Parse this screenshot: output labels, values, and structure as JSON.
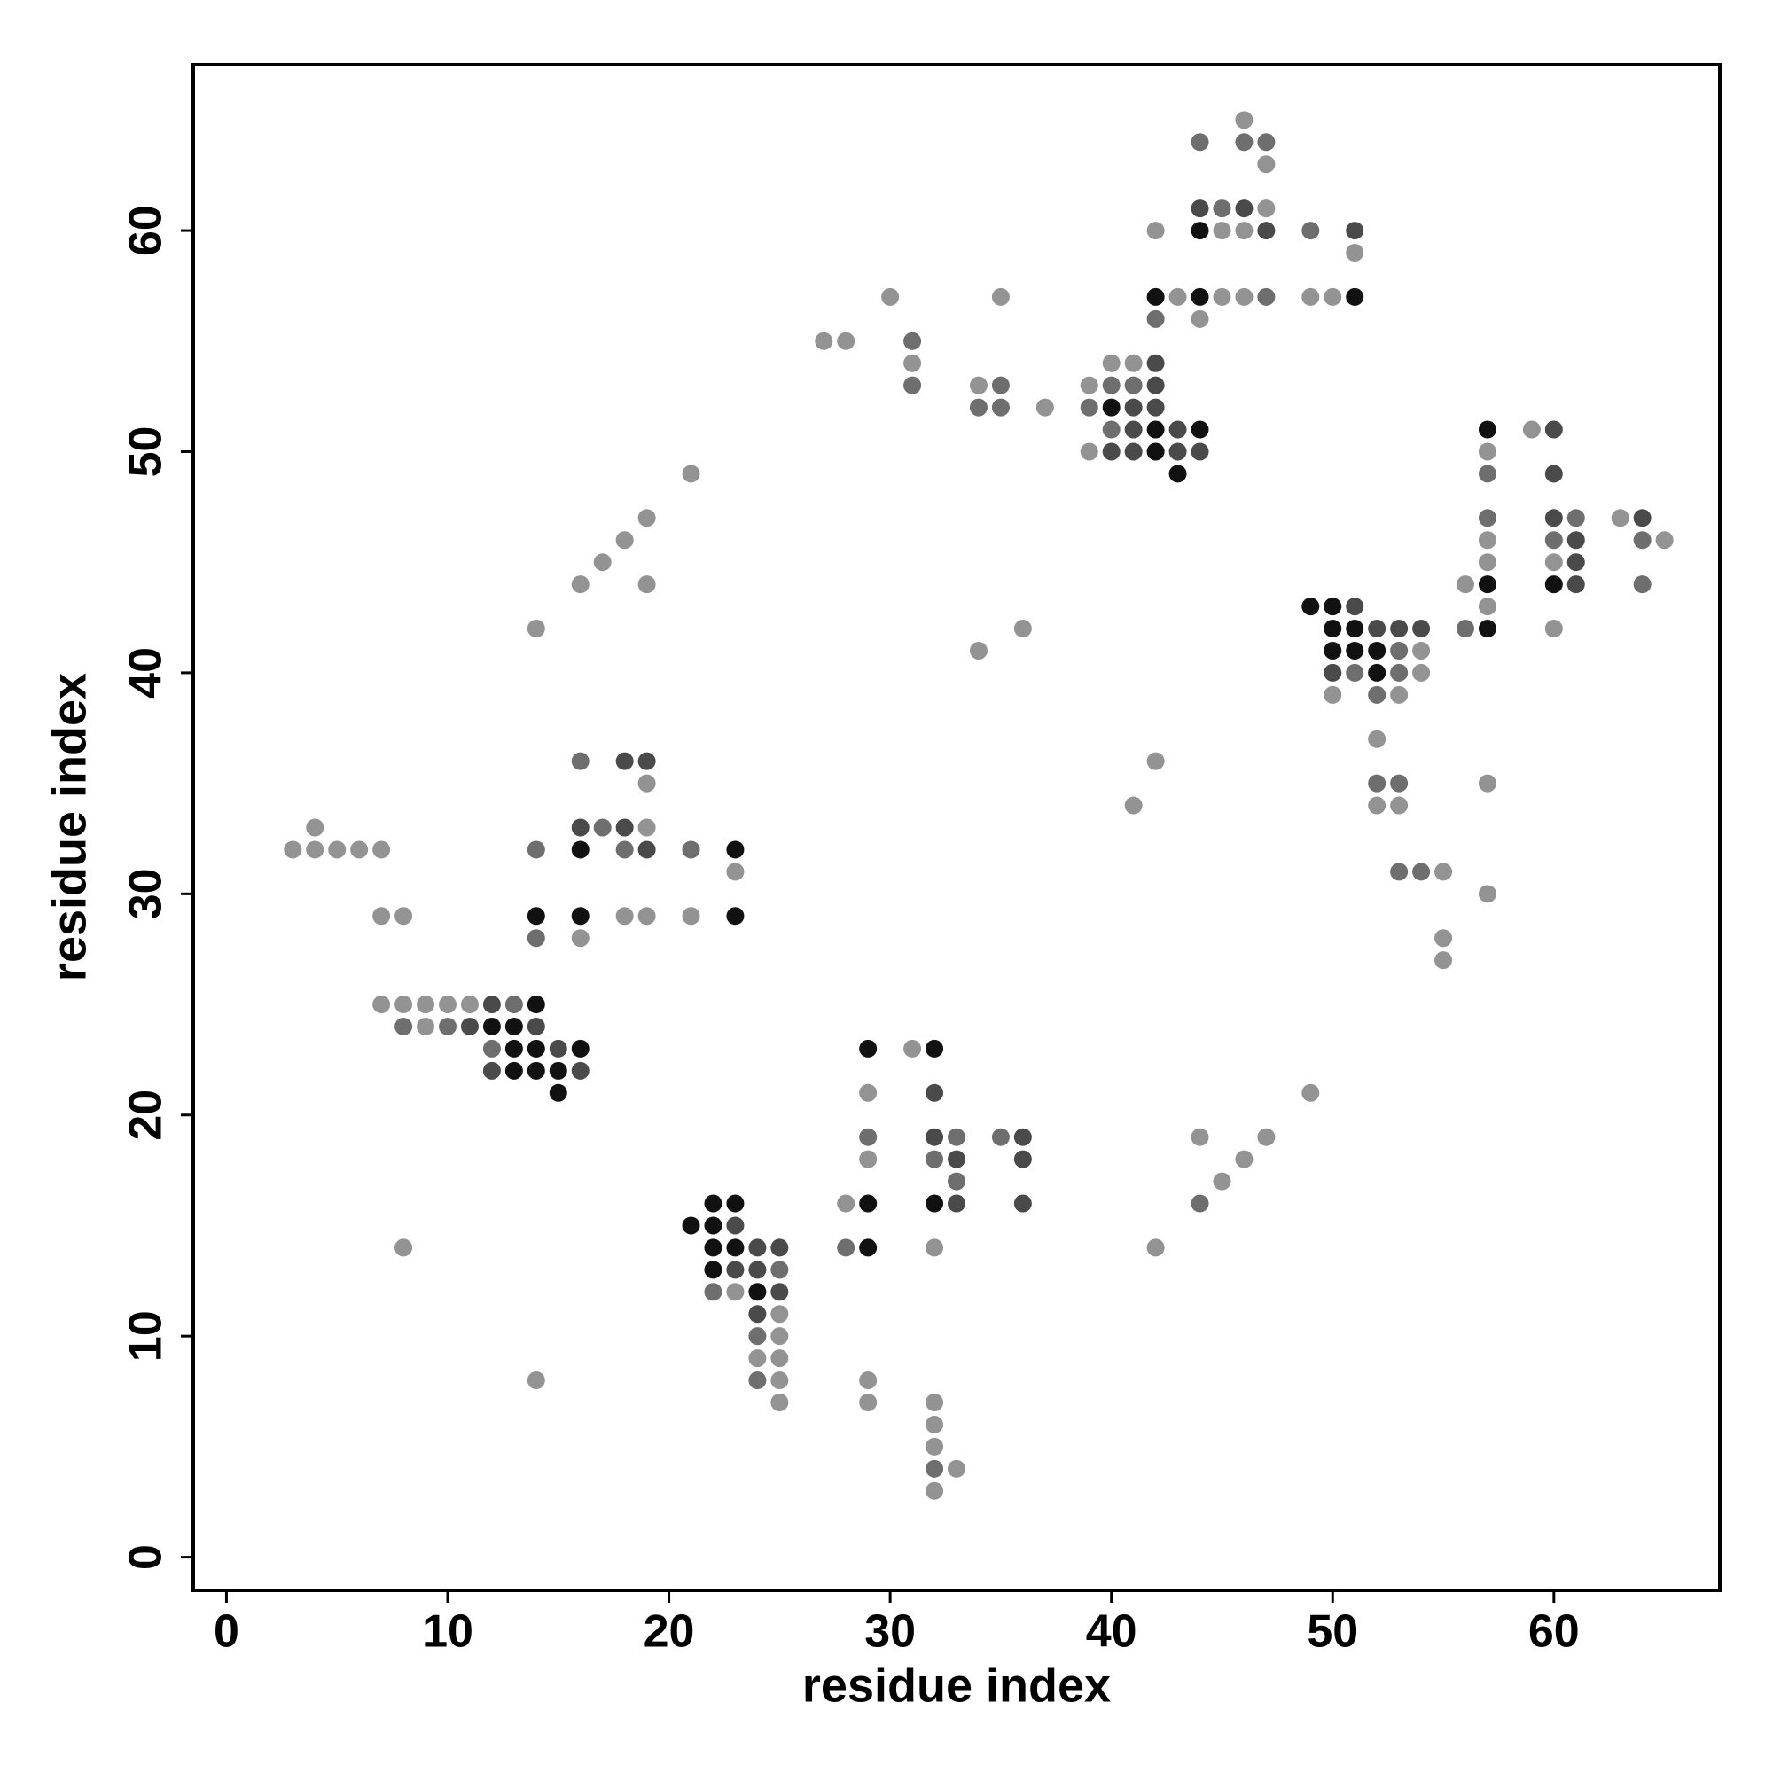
{
  "chart_data": {
    "type": "scatter",
    "xlabel": "residue index",
    "ylabel": "residue index",
    "xlim": [
      -1.5,
      67.5
    ],
    "ylim": [
      -1.5,
      67.5
    ],
    "xticks": [
      0,
      10,
      20,
      30,
      40,
      50,
      60
    ],
    "yticks": [
      0,
      10,
      20,
      30,
      40,
      50,
      60
    ],
    "series": [
      {
        "color": "#939393",
        "x": [
          46,
          47,
          47,
          42,
          45,
          46,
          51,
          30,
          35,
          43,
          45,
          46,
          49,
          50,
          44,
          27,
          28,
          31,
          40,
          41,
          34,
          39,
          37,
          59,
          39,
          57,
          21,
          19,
          63,
          18,
          57,
          65,
          17,
          57,
          60,
          16,
          19,
          56,
          57,
          14,
          36,
          60,
          34,
          54,
          54,
          50,
          53,
          52,
          42,
          19,
          57,
          41,
          52,
          53,
          4,
          19,
          3,
          4,
          5,
          6,
          7,
          23,
          55,
          57,
          7,
          8,
          18,
          19,
          21,
          16,
          55,
          55,
          7,
          8,
          9,
          10,
          11,
          9,
          31,
          29,
          49,
          44,
          47,
          29,
          46,
          45,
          28,
          8,
          32,
          42,
          23,
          25,
          25,
          24,
          25,
          14,
          25,
          29,
          25,
          29,
          32,
          32,
          32,
          33,
          32
        ],
        "y": [
          65,
          63,
          61,
          60,
          60,
          60,
          59,
          57,
          57,
          57,
          57,
          57,
          57,
          57,
          56,
          55,
          55,
          54,
          54,
          54,
          53,
          53,
          52,
          51,
          50,
          50,
          49,
          47,
          47,
          46,
          46,
          46,
          45,
          45,
          45,
          44,
          44,
          44,
          43,
          42,
          42,
          42,
          41,
          41,
          40,
          39,
          39,
          37,
          36,
          35,
          35,
          34,
          34,
          34,
          33,
          33,
          32,
          32,
          32,
          32,
          32,
          31,
          31,
          30,
          29,
          29,
          29,
          29,
          29,
          28,
          28,
          27,
          25,
          25,
          25,
          25,
          25,
          24,
          23,
          21,
          21,
          19,
          19,
          18,
          18,
          17,
          16,
          14,
          14,
          14,
          12,
          11,
          10,
          9,
          9,
          8,
          8,
          8,
          7,
          7,
          7,
          6,
          5,
          4,
          3
        ]
      },
      {
        "color": "#6e6e6e",
        "x": [
          44,
          46,
          47,
          45,
          49,
          47,
          42,
          31,
          31,
          35,
          40,
          41,
          34,
          35,
          39,
          40,
          57,
          57,
          61,
          60,
          64,
          64,
          56,
          53,
          51,
          53,
          52,
          16,
          52,
          53,
          17,
          14,
          18,
          21,
          53,
          54,
          14,
          13,
          8,
          10,
          12,
          29,
          33,
          35,
          32,
          33,
          44,
          28,
          25,
          22,
          24,
          24,
          32
        ],
        "y": [
          64,
          64,
          64,
          61,
          60,
          57,
          56,
          55,
          53,
          53,
          53,
          53,
          52,
          52,
          52,
          51,
          49,
          47,
          47,
          46,
          46,
          44,
          42,
          41,
          40,
          40,
          39,
          36,
          35,
          35,
          33,
          32,
          32,
          32,
          31,
          31,
          28,
          25,
          24,
          24,
          23,
          19,
          19,
          19,
          18,
          17,
          16,
          14,
          13,
          12,
          10,
          8,
          4
        ]
      },
      {
        "color": "#4a4a4a",
        "x": [
          44,
          46,
          47,
          51,
          42,
          42,
          41,
          42,
          41,
          43,
          60,
          40,
          41,
          43,
          44,
          60,
          60,
          64,
          61,
          61,
          61,
          51,
          52,
          53,
          54,
          50,
          18,
          19,
          16,
          18,
          19,
          12,
          11,
          14,
          15,
          12,
          16,
          32,
          32,
          36,
          33,
          36,
          33,
          36,
          23,
          24,
          25,
          23,
          24,
          25,
          24
        ],
        "y": [
          61,
          61,
          60,
          60,
          54,
          53,
          52,
          52,
          51,
          51,
          51,
          50,
          50,
          50,
          50,
          49,
          47,
          47,
          46,
          45,
          44,
          43,
          42,
          42,
          42,
          40,
          36,
          36,
          33,
          33,
          32,
          25,
          24,
          24,
          23,
          22,
          22,
          21,
          19,
          19,
          18,
          18,
          16,
          16,
          15,
          14,
          14,
          13,
          13,
          12,
          11
        ]
      },
      {
        "color": "#111111",
        "x": [
          44,
          42,
          44,
          51,
          40,
          42,
          44,
          57,
          42,
          43,
          57,
          60,
          49,
          50,
          50,
          51,
          57,
          50,
          51,
          52,
          52,
          16,
          23,
          14,
          16,
          23,
          14,
          12,
          13,
          13,
          14,
          16,
          29,
          32,
          13,
          14,
          15,
          15,
          22,
          23,
          29,
          32,
          21,
          22,
          22,
          23,
          29,
          22,
          24
        ],
        "y": [
          60,
          57,
          57,
          57,
          52,
          51,
          51,
          51,
          50,
          49,
          44,
          44,
          43,
          43,
          42,
          42,
          42,
          41,
          41,
          41,
          40,
          32,
          32,
          29,
          29,
          29,
          25,
          24,
          24,
          23,
          23,
          23,
          23,
          23,
          22,
          22,
          22,
          21,
          16,
          16,
          16,
          16,
          15,
          15,
          14,
          14,
          14,
          13,
          12
        ]
      }
    ]
  }
}
